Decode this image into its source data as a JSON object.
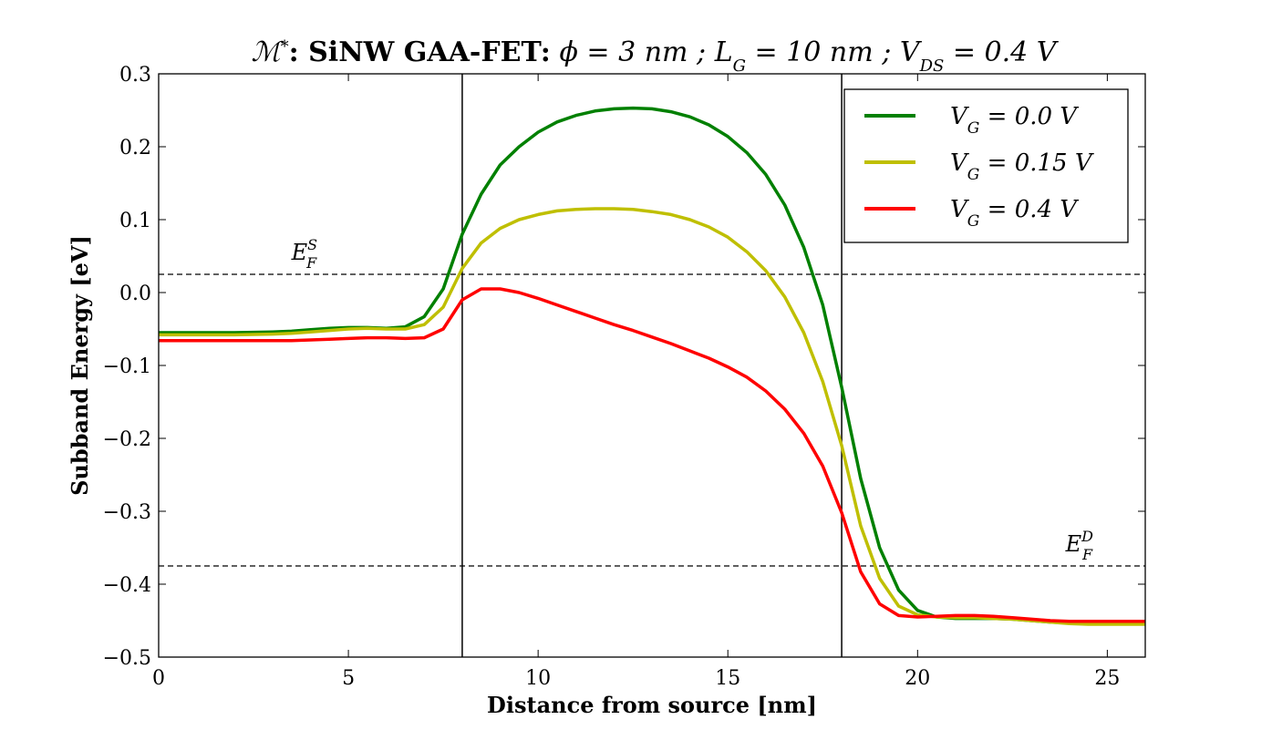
{
  "chart_data": {
    "type": "line",
    "title": "ℳ*: SiNW GAA-FET: ϕ = 3 nm ; L_G = 10 nm ; V_DS = 0.4 V",
    "title_parts": {
      "m": "ℳ",
      "m_sup": "*",
      "bold": ": SiNW GAA-FET:",
      "phi": "ϕ = 3 nm ;",
      "lg": "L",
      "lg_sub": "G",
      "lg_rest": "= 10 nm ;",
      "vds": "V",
      "vds_sub": "DS",
      "vds_rest": "= 0.4 V"
    },
    "xlabel": "Distance from source [nm]",
    "ylabel": "Subband Energy [eV]",
    "xlim": [
      0,
      26
    ],
    "ylim": [
      -0.5,
      0.3
    ],
    "xticks": [
      0,
      5,
      10,
      15,
      20,
      25
    ],
    "xtick_labels": [
      "0",
      "5",
      "10",
      "15",
      "20",
      "25"
    ],
    "yticks": [
      -0.5,
      -0.4,
      -0.3,
      -0.2,
      -0.1,
      0.0,
      0.1,
      0.2,
      0.3
    ],
    "ytick_labels": [
      "−0.5",
      "−0.4",
      "−0.3",
      "−0.2",
      "−0.1",
      "0.0",
      "0.1",
      "0.2",
      "0.3"
    ],
    "grid": false,
    "legend_position": "top-right",
    "vertical_lines": [
      8,
      18
    ],
    "fermi_levels": [
      {
        "label": "E",
        "sub": "F",
        "sup": "S",
        "y": 0.025,
        "label_x": 3.5,
        "label_y": 0.045
      },
      {
        "label": "E",
        "sub": "F",
        "sup": "D",
        "y": -0.375,
        "label_x": 23.9,
        "label_y": -0.355
      }
    ],
    "series": [
      {
        "name": "V_G = 0.0 V",
        "name_v": "V",
        "name_sub": "G",
        "name_rest": "= 0.0 V",
        "color": "#008000",
        "x": [
          0,
          1,
          2,
          3,
          3.5,
          4,
          4.5,
          5,
          5.5,
          6,
          6.5,
          7,
          7.5,
          8,
          8.5,
          9,
          9.5,
          10,
          10.5,
          11,
          11.5,
          12,
          12.5,
          13,
          13.5,
          14,
          14.5,
          15,
          15.5,
          16,
          16.5,
          17,
          17.5,
          18,
          18.5,
          19,
          19.5,
          20,
          20.5,
          21,
          21.5,
          22,
          22.5,
          23,
          23.5,
          24,
          24.5,
          25,
          25.5,
          26
        ],
        "y": [
          -0.055,
          -0.055,
          -0.055,
          -0.054,
          -0.053,
          -0.051,
          -0.049,
          -0.048,
          -0.048,
          -0.049,
          -0.047,
          -0.033,
          0.005,
          0.08,
          0.135,
          0.175,
          0.2,
          0.22,
          0.234,
          0.243,
          0.249,
          0.252,
          0.253,
          0.252,
          0.248,
          0.241,
          0.23,
          0.214,
          0.192,
          0.162,
          0.12,
          0.062,
          -0.017,
          -0.13,
          -0.255,
          -0.35,
          -0.408,
          -0.436,
          -0.445,
          -0.447,
          -0.447,
          -0.447,
          -0.448,
          -0.45,
          -0.452,
          -0.453,
          -0.453,
          -0.453,
          -0.454,
          -0.454
        ]
      },
      {
        "name": "V_G = 0.15 V",
        "name_v": "V",
        "name_sub": "G",
        "name_rest": "= 0.15 V",
        "color": "#bfbf00",
        "x": [
          0,
          1,
          2,
          3,
          3.5,
          4,
          4.5,
          5,
          5.5,
          6,
          6.5,
          7,
          7.5,
          8,
          8.5,
          9,
          9.5,
          10,
          10.5,
          11,
          11.5,
          12,
          12.5,
          13,
          13.5,
          14,
          14.5,
          15,
          15.5,
          16,
          16.5,
          17,
          17.5,
          18,
          18.5,
          19,
          19.5,
          20,
          20.5,
          21,
          21.5,
          22,
          22.5,
          23,
          23.5,
          24,
          24.5,
          25,
          25.5,
          26
        ],
        "y": [
          -0.058,
          -0.058,
          -0.058,
          -0.057,
          -0.056,
          -0.054,
          -0.052,
          -0.05,
          -0.049,
          -0.05,
          -0.05,
          -0.044,
          -0.02,
          0.033,
          0.068,
          0.088,
          0.1,
          0.107,
          0.112,
          0.114,
          0.115,
          0.115,
          0.114,
          0.111,
          0.107,
          0.1,
          0.09,
          0.076,
          0.056,
          0.03,
          -0.006,
          -0.055,
          -0.122,
          -0.21,
          -0.32,
          -0.392,
          -0.43,
          -0.442,
          -0.445,
          -0.446,
          -0.446,
          -0.447,
          -0.448,
          -0.45,
          -0.452,
          -0.454,
          -0.455,
          -0.455,
          -0.455,
          -0.455
        ]
      },
      {
        "name": "V_G = 0.4 V",
        "name_v": "V",
        "name_sub": "G",
        "name_rest": "= 0.4 V",
        "color": "#ff0000",
        "x": [
          0,
          1,
          2,
          3,
          3.5,
          4,
          4.5,
          5,
          5.5,
          6,
          6.5,
          7,
          7.5,
          8,
          8.5,
          9,
          9.5,
          10,
          10.5,
          11,
          11.5,
          12,
          12.5,
          13,
          13.5,
          14,
          14.5,
          15,
          15.5,
          16,
          16.5,
          17,
          17.5,
          18,
          18.5,
          19,
          19.5,
          20,
          20.5,
          21,
          21.5,
          22,
          22.5,
          23,
          23.5,
          24,
          24.5,
          25,
          25.5,
          26
        ],
        "y": [
          -0.066,
          -0.066,
          -0.066,
          -0.066,
          -0.066,
          -0.065,
          -0.064,
          -0.063,
          -0.062,
          -0.062,
          -0.063,
          -0.062,
          -0.05,
          -0.01,
          0.005,
          0.005,
          0.0,
          -0.008,
          -0.017,
          -0.026,
          -0.035,
          -0.044,
          -0.052,
          -0.061,
          -0.07,
          -0.08,
          -0.09,
          -0.102,
          -0.116,
          -0.135,
          -0.16,
          -0.193,
          -0.238,
          -0.302,
          -0.383,
          -0.427,
          -0.443,
          -0.445,
          -0.444,
          -0.443,
          -0.443,
          -0.444,
          -0.446,
          -0.448,
          -0.45,
          -0.451,
          -0.451,
          -0.451,
          -0.451,
          -0.451
        ]
      }
    ]
  }
}
